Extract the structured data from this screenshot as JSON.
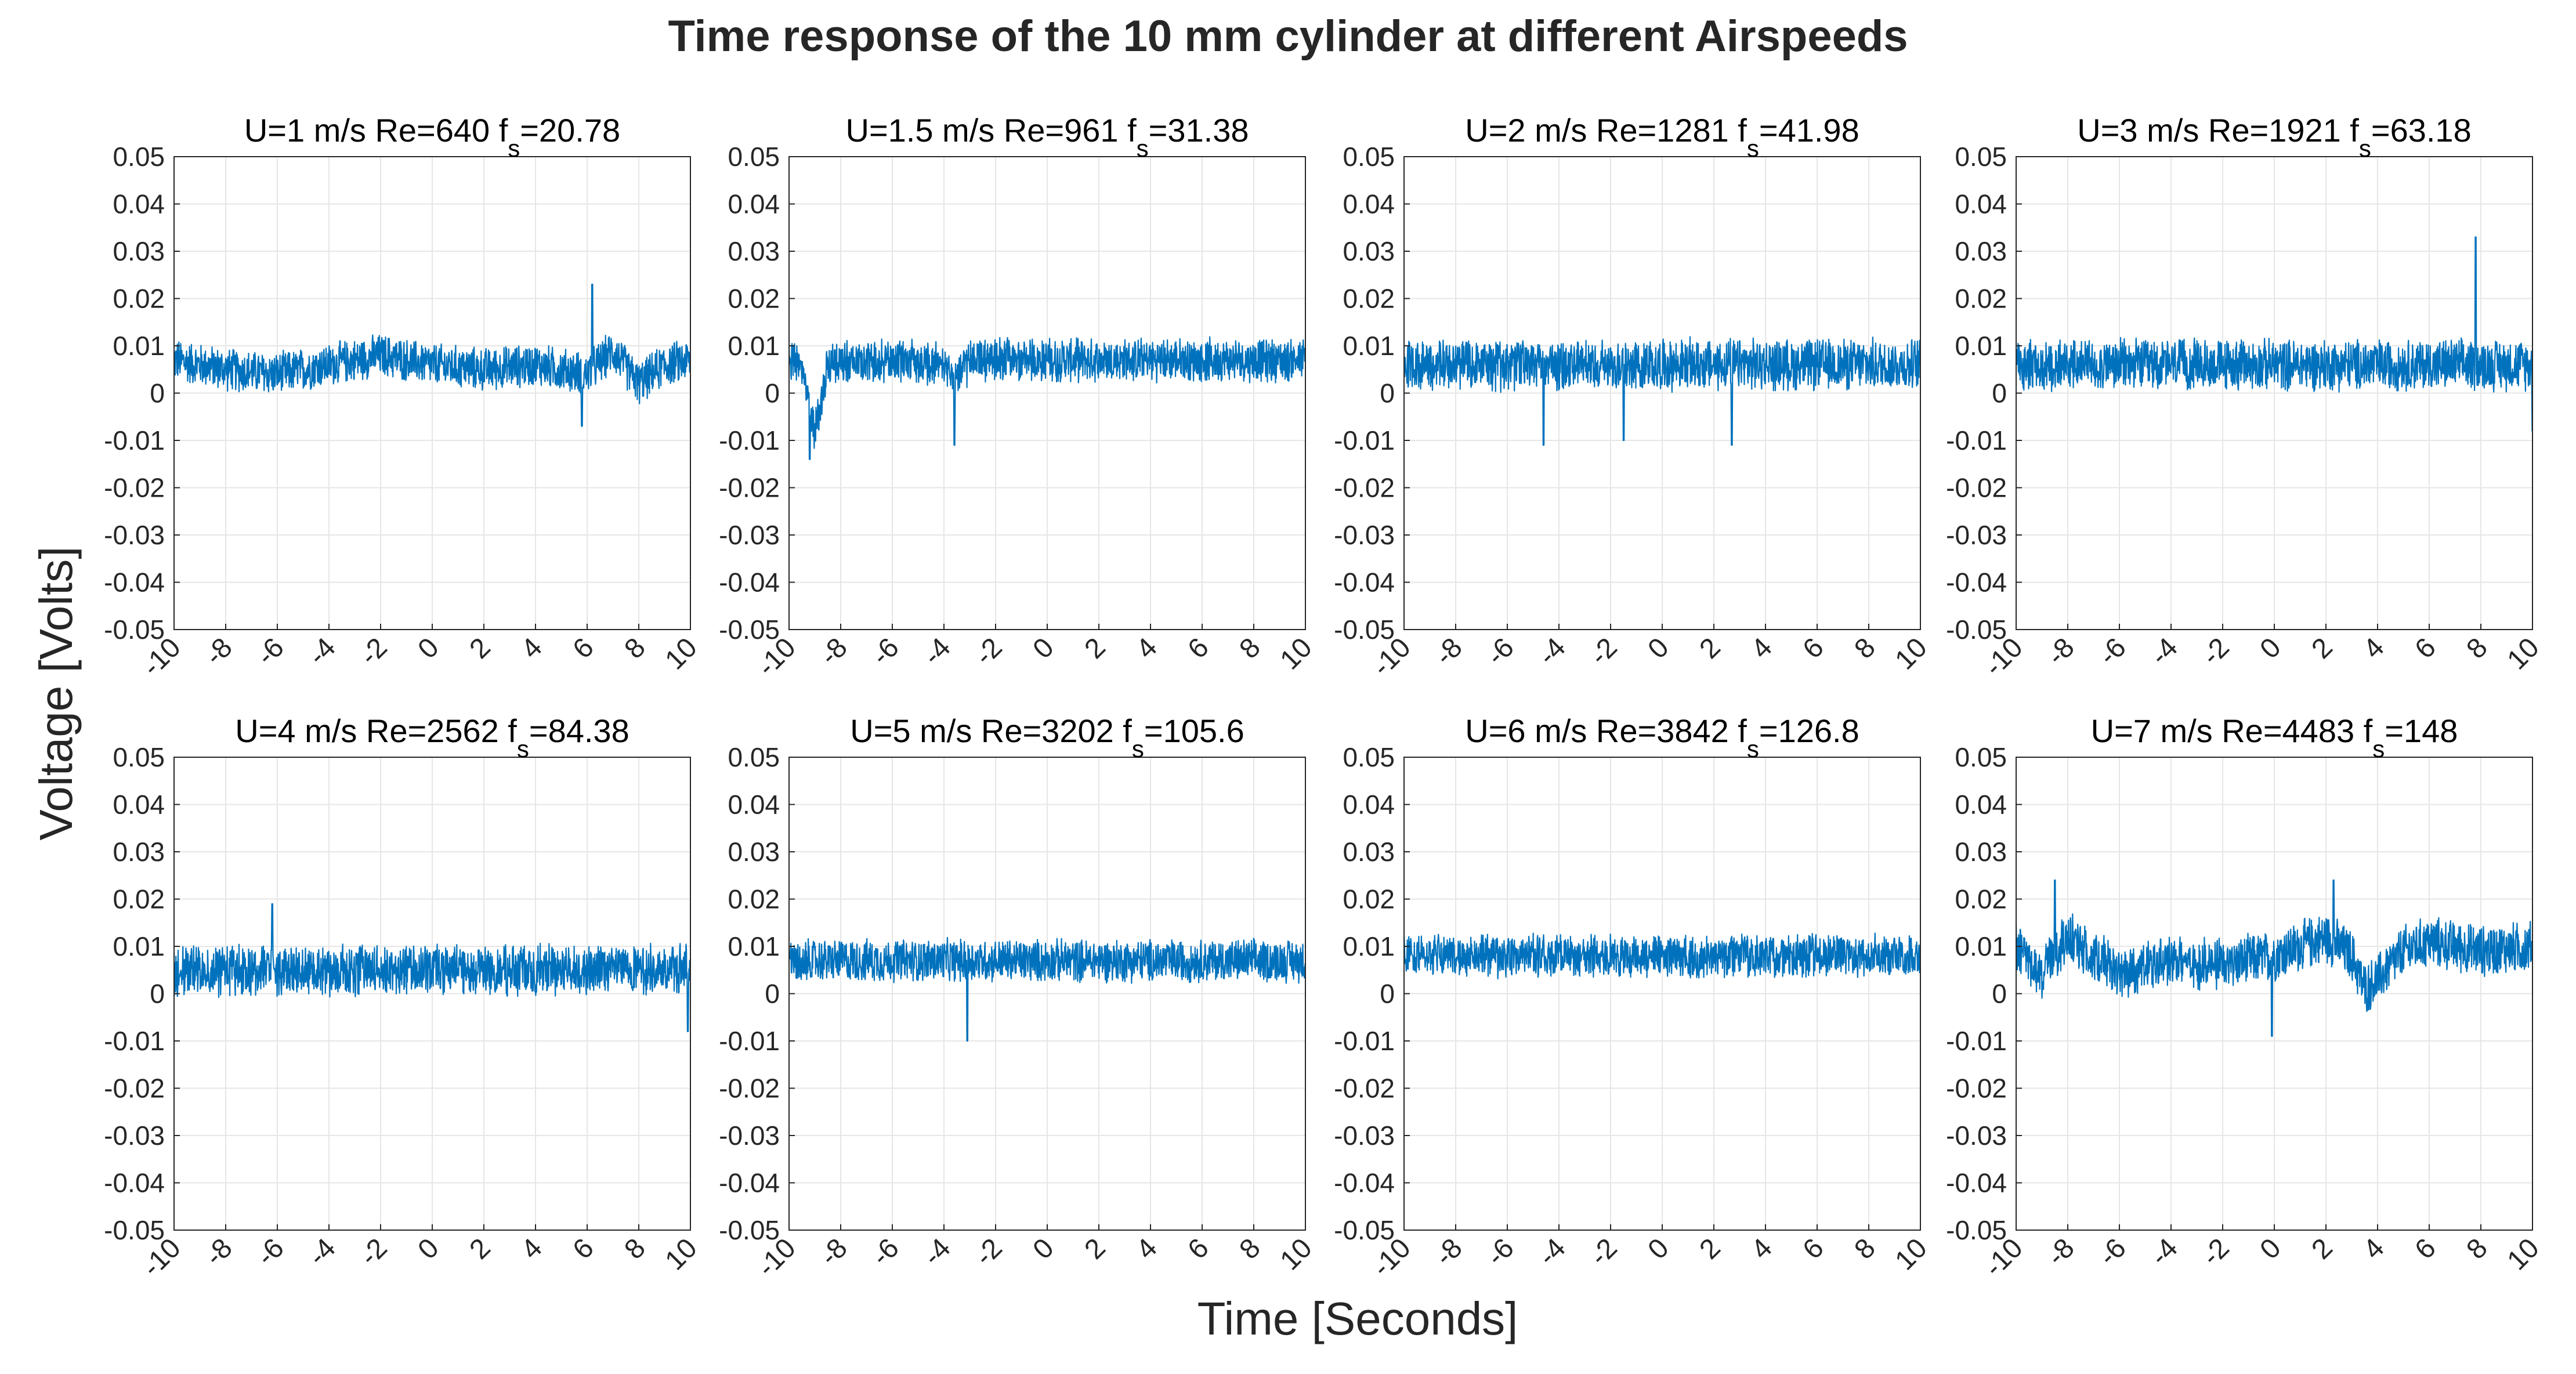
{
  "figure": {
    "title": "Time response of the 10 mm cylinder at different Airspeeds",
    "xlabel": "Time [Seconds]",
    "ylabel": "Voltage [Volts]"
  },
  "colors": {
    "trace": "#0072BD",
    "trace_light": "#4DA3DD",
    "grid": "#E6E6E6",
    "axes": "#262626"
  },
  "chart_data": [
    {
      "type": "line",
      "title_main": "U=1 m/s  Re=640  f",
      "title_sub": "s",
      "title_value": "=20.78",
      "xlim": [
        -10,
        10
      ],
      "ylim": [
        -0.05,
        0.05
      ],
      "xticks": [
        -10,
        -8,
        -6,
        -4,
        -2,
        0,
        2,
        4,
        6,
        8,
        10
      ],
      "yticks": [
        0.05,
        0.04,
        0.03,
        0.02,
        0.01,
        0,
        -0.01,
        -0.02,
        -0.03,
        -0.04,
        -0.05
      ],
      "ytick_labels": [
        "0.05",
        "0.04",
        "0.03",
        "0.02",
        "0.01",
        "0",
        "-0.01",
        "-0.02",
        "-0.03",
        "-0.04",
        "-0.05"
      ],
      "series": [
        {
          "name": "voltage",
          "mean": 0.006,
          "noise_band": 0.005,
          "wander_x": [
            -10,
            -8,
            -6,
            -4,
            -2,
            0,
            2,
            4,
            5,
            6,
            7,
            8,
            9,
            10
          ],
          "wander_y": [
            0.007,
            0.005,
            0.004,
            0.006,
            0.008,
            0.006,
            0.005,
            0.006,
            0.005,
            0.004,
            0.009,
            0.002,
            0.006,
            0.007
          ],
          "events": [
            {
              "x": 6.2,
              "y": 0.023
            },
            {
              "x": 5.8,
              "y": -0.007
            }
          ]
        }
      ]
    },
    {
      "type": "line",
      "title_main": "U=1.5 m/s  Re=961  f",
      "title_sub": "s",
      "title_value": "=31.38",
      "xlim": [
        -10,
        10
      ],
      "ylim": [
        -0.05,
        0.05
      ],
      "xticks": [
        -10,
        -8,
        -6,
        -4,
        -2,
        0,
        2,
        4,
        6,
        8,
        10
      ],
      "yticks": [
        0.05,
        0.04,
        0.03,
        0.02,
        0.01,
        0,
        -0.01,
        -0.02,
        -0.03,
        -0.04,
        -0.05
      ],
      "ytick_labels": [
        "0.05",
        "0.04",
        "0.03",
        "0.02",
        "0.01",
        "0",
        "-0.01",
        "-0.02",
        "-0.03",
        "-0.04",
        "-0.05"
      ],
      "series": [
        {
          "name": "voltage",
          "mean": 0.007,
          "noise_band": 0.005,
          "wander_x": [
            -10,
            -9.5,
            -9,
            -8.5,
            -6,
            -4,
            -3.5,
            -3,
            0,
            4,
            8,
            10
          ],
          "wander_y": [
            0.008,
            0.004,
            -0.008,
            0.006,
            0.007,
            0.006,
            0.003,
            0.007,
            0.007,
            0.007,
            0.007,
            0.007
          ],
          "events": [
            {
              "x": -9.2,
              "y": -0.014
            },
            {
              "x": -3.6,
              "y": -0.011
            }
          ]
        }
      ]
    },
    {
      "type": "line",
      "title_main": "U=2 m/s  Re=1281  f",
      "title_sub": "s",
      "title_value": "=41.98",
      "xlim": [
        -10,
        10
      ],
      "ylim": [
        -0.05,
        0.05
      ],
      "xticks": [
        -10,
        -8,
        -6,
        -4,
        -2,
        0,
        2,
        4,
        6,
        8,
        10
      ],
      "yticks": [
        0.05,
        0.04,
        0.03,
        0.02,
        0.01,
        0,
        -0.01,
        -0.02,
        -0.03,
        -0.04,
        -0.05
      ],
      "ytick_labels": [
        "0.05",
        "0.04",
        "0.03",
        "0.02",
        "0.01",
        "0",
        "-0.01",
        "-0.02",
        "-0.03",
        "-0.04",
        "-0.05"
      ],
      "series": [
        {
          "name": "voltage",
          "mean": 0.006,
          "noise_band": 0.006,
          "wander_x": [
            -10,
            -5,
            0,
            5,
            10
          ],
          "wander_y": [
            0.006,
            0.006,
            0.006,
            0.006,
            0.006
          ],
          "events": [
            {
              "x": -4.6,
              "y": -0.011
            },
            {
              "x": -1.5,
              "y": -0.01
            },
            {
              "x": 2.7,
              "y": -0.011
            }
          ]
        }
      ]
    },
    {
      "type": "line",
      "title_main": "U=3 m/s  Re=1921  f",
      "title_sub": "s",
      "title_value": "=63.18",
      "xlim": [
        -10,
        10
      ],
      "ylim": [
        -0.05,
        0.05
      ],
      "xticks": [
        -10,
        -8,
        -6,
        -4,
        -2,
        0,
        2,
        4,
        6,
        8,
        10
      ],
      "yticks": [
        0.05,
        0.04,
        0.03,
        0.02,
        0.01,
        0,
        -0.01,
        -0.02,
        -0.03,
        -0.04,
        -0.05
      ],
      "ytick_labels": [
        "0.05",
        "0.04",
        "0.03",
        "0.02",
        "0.01",
        "0",
        "-0.01",
        "-0.02",
        "-0.03",
        "-0.04",
        "-0.05"
      ],
      "series": [
        {
          "name": "voltage",
          "mean": 0.006,
          "noise_band": 0.006,
          "wander_x": [
            -10,
            -5,
            0,
            5,
            10
          ],
          "wander_y": [
            0.006,
            0.006,
            0.006,
            0.006,
            0.006
          ],
          "events": [
            {
              "x": 7.8,
              "y": 0.033
            },
            {
              "x": 10,
              "y": -0.008
            }
          ]
        }
      ]
    },
    {
      "type": "line",
      "title_main": "U=4 m/s  Re=2562  f",
      "title_sub": "s",
      "title_value": "=84.38",
      "xlim": [
        -10,
        10
      ],
      "ylim": [
        -0.05,
        0.05
      ],
      "xticks": [
        -10,
        -8,
        -6,
        -4,
        -2,
        0,
        2,
        4,
        6,
        8,
        10
      ],
      "yticks": [
        0.05,
        0.04,
        0.03,
        0.02,
        0.01,
        0,
        -0.01,
        -0.02,
        -0.03,
        -0.04,
        -0.05
      ],
      "ytick_labels": [
        "0.05",
        "0.04",
        "0.03",
        "0.02",
        "0.01",
        "0",
        "-0.01",
        "-0.02",
        "-0.03",
        "-0.04",
        "-0.05"
      ],
      "series": [
        {
          "name": "voltage",
          "mean": 0.005,
          "noise_band": 0.006,
          "wander_x": [
            -10,
            -5,
            0,
            5,
            10
          ],
          "wander_y": [
            0.005,
            0.005,
            0.005,
            0.005,
            0.005
          ],
          "events": [
            {
              "x": 9.9,
              "y": -0.008
            },
            {
              "x": -6.2,
              "y": 0.019
            }
          ]
        }
      ]
    },
    {
      "type": "line",
      "title_main": "U=5 m/s  Re=3202  f",
      "title_sub": "s",
      "title_value": "=105.6",
      "xlim": [
        -10,
        10
      ],
      "ylim": [
        -0.05,
        0.05
      ],
      "xticks": [
        -10,
        -8,
        -6,
        -4,
        -2,
        0,
        2,
        4,
        6,
        8,
        10
      ],
      "yticks": [
        0.05,
        0.04,
        0.03,
        0.02,
        0.01,
        0,
        -0.01,
        -0.02,
        -0.03,
        -0.04,
        -0.05
      ],
      "ytick_labels": [
        "0.05",
        "0.04",
        "0.03",
        "0.02",
        "0.01",
        "0",
        "-0.01",
        "-0.02",
        "-0.03",
        "-0.04",
        "-0.05"
      ],
      "series": [
        {
          "name": "voltage",
          "mean": 0.007,
          "noise_band": 0.005,
          "wander_x": [
            -10,
            -5,
            0,
            5,
            10
          ],
          "wander_y": [
            0.007,
            0.007,
            0.007,
            0.007,
            0.007
          ],
          "events": [
            {
              "x": -3.1,
              "y": -0.01
            }
          ]
        }
      ]
    },
    {
      "type": "line",
      "title_main": "U=6 m/s  Re=3842  f",
      "title_sub": "s",
      "title_value": "=126.8",
      "xlim": [
        -10,
        10
      ],
      "ylim": [
        -0.05,
        0.05
      ],
      "xticks": [
        -10,
        -8,
        -6,
        -4,
        -2,
        0,
        2,
        4,
        6,
        8,
        10
      ],
      "yticks": [
        0.05,
        0.04,
        0.03,
        0.02,
        0.01,
        0,
        -0.01,
        -0.02,
        -0.03,
        -0.04,
        -0.05
      ],
      "ytick_labels": [
        "0.05",
        "0.04",
        "0.03",
        "0.02",
        "0.01",
        "0",
        "-0.01",
        "-0.02",
        "-0.03",
        "-0.04",
        "-0.05"
      ],
      "series": [
        {
          "name": "voltage",
          "mean": 0.008,
          "noise_band": 0.005,
          "wander_x": [
            -10,
            -5,
            0,
            5,
            10
          ],
          "wander_y": [
            0.008,
            0.008,
            0.008,
            0.008,
            0.008
          ],
          "events": []
        }
      ]
    },
    {
      "type": "line",
      "title_main": "U=7 m/s  Re=4483  f",
      "title_sub": "s",
      "title_value": "=148",
      "xlim": [
        -10,
        10
      ],
      "ylim": [
        -0.05,
        0.05
      ],
      "xticks": [
        -10,
        -8,
        -6,
        -4,
        -2,
        0,
        2,
        4,
        6,
        8,
        10
      ],
      "yticks": [
        0.05,
        0.04,
        0.03,
        0.02,
        0.01,
        0,
        -0.01,
        -0.02,
        -0.03,
        -0.04,
        -0.05
      ],
      "ytick_labels": [
        "0.05",
        "0.04",
        "0.03",
        "0.02",
        "0.01",
        "0",
        "-0.01",
        "-0.02",
        "-0.03",
        "-0.04",
        "-0.05"
      ],
      "series": [
        {
          "name": "voltage",
          "mean": 0.008,
          "noise_band": 0.006,
          "wander_x": [
            -10,
            -9,
            -8,
            -7,
            -6,
            -4,
            -2,
            0,
            2,
            3,
            3.5,
            4,
            5,
            6,
            8,
            10
          ],
          "wander_y": [
            0.01,
            0.004,
            0.012,
            0.008,
            0.004,
            0.007,
            0.006,
            0.008,
            0.012,
            0.008,
            0.001,
            0.003,
            0.009,
            0.011,
            0.009,
            0.01
          ],
          "events": [
            {
              "x": -0.1,
              "y": -0.009
            },
            {
              "x": 2.3,
              "y": 0.024
            },
            {
              "x": -8.5,
              "y": 0.024
            }
          ]
        }
      ]
    }
  ]
}
